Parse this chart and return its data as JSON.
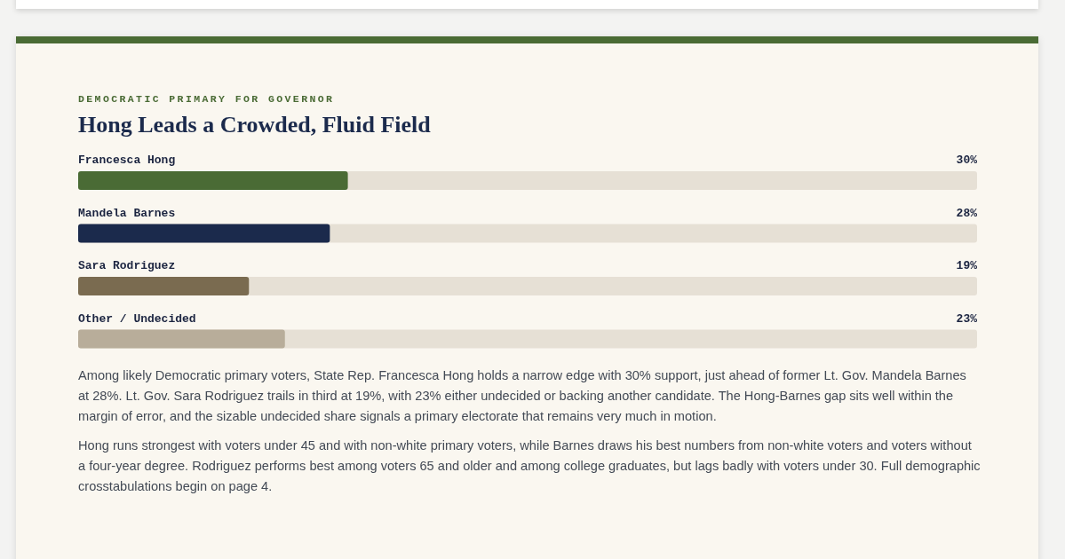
{
  "chart_data": {
    "type": "bar",
    "orientation": "horizontal",
    "subtitle": "DEMOCRATIC PRIMARY FOR GOVERNOR",
    "title": "Hong Leads a Crowded, Fluid Field",
    "categories": [
      "Francesca Hong",
      "Mandela Barnes",
      "Sara Rodriguez",
      "Other / Undecided"
    ],
    "values": [
      30,
      28,
      19,
      23
    ],
    "colors": [
      "#4a6b35",
      "#1b2a4c",
      "#7a6b50",
      "#b8ad9a"
    ],
    "value_labels": [
      "30%",
      "28%",
      "19%",
      "23%"
    ],
    "xlim": [
      0,
      100
    ],
    "annotations": [
      "Among likely Democratic primary voters, State Rep. Francesca Hong holds a narrow edge with 30% support, just ahead of former Lt. Gov. Mandela Barnes at 28%. Lt. Gov. Sara Rodriguez trails in third at 19%, with 23% either undecided or backing another candidate. The Hong-Barnes gap sits well within the margin of error, and the sizable undecided share signals a primary electorate that remains very much in motion.",
      "Hong runs strongest with voters under 45 and with non-white primary voters, while Barnes draws his best numbers from non-white voters and voters without a four-year degree. Rodriguez performs best among voters 65 and older and among college graduates, but lags badly with voters under 30. Full demographic crosstabulations begin on page 4."
    ]
  }
}
